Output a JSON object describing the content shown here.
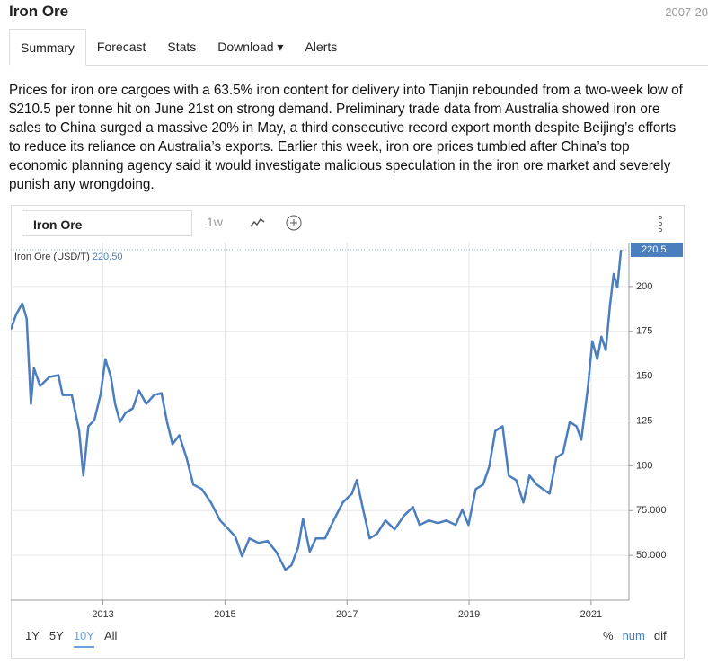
{
  "header": {
    "title": "Iron Ore",
    "date_range": "2007-20"
  },
  "tabs": [
    "Summary",
    "Forecast",
    "Stats",
    "Download",
    "Alerts"
  ],
  "summary": "Prices for iron ore cargoes with a 63.5% iron content for delivery into Tianjin rebounded from a two-week low of $210.5 per tonne hit on June 21st on strong demand. Preliminary trade data from Australia showed iron ore sales to China surged a massive 20% in May, a third consecutive record export month despite Beijing’s efforts to reduce its reliance on Australia’s exports. Earlier this week, iron ore prices tumbled after China’s top economic planning agency said it would investigate malicious speculation in the iron ore market and severely punish any wrongdoing.",
  "toolbar": {
    "search": "Iron Ore",
    "interval": "1w"
  },
  "ranges": [
    "1Y",
    "5Y",
    "10Y",
    "All"
  ],
  "modes": [
    "%",
    "num",
    "dif"
  ],
  "chart_data": {
    "type": "line",
    "series": [
      {
        "name": "Iron Ore (USD/T)",
        "color": "#4a7ebf",
        "x": [
          2011.49,
          2011.58,
          2011.68,
          2011.75,
          2011.82,
          2011.87,
          2011.97,
          2012.12,
          2012.27,
          2012.34,
          2012.49,
          2012.61,
          2012.68,
          2012.76,
          2012.86,
          2012.96,
          2013.04,
          2013.13,
          2013.2,
          2013.28,
          2013.37,
          2013.49,
          2013.59,
          2013.71,
          2013.84,
          2013.96,
          2014.05,
          2014.14,
          2014.25,
          2014.37,
          2014.48,
          2014.62,
          2014.77,
          2014.92,
          2015.06,
          2015.17,
          2015.28,
          2015.4,
          2015.55,
          2015.7,
          2015.84,
          2015.99,
          2016.09,
          2016.2,
          2016.28,
          2016.39,
          2016.49,
          2016.64,
          2016.78,
          2016.93,
          2017.08,
          2017.16,
          2017.27,
          2017.37,
          2017.49,
          2017.63,
          2017.78,
          2017.93,
          2018.08,
          2018.19,
          2018.34,
          2018.49,
          2018.63,
          2018.78,
          2018.89,
          2018.99,
          2019.11,
          2019.23,
          2019.33,
          2019.43,
          2019.55,
          2019.65,
          2019.77,
          2019.89,
          2019.99,
          2020.11,
          2020.21,
          2020.32,
          2020.43,
          2020.54,
          2020.65,
          2020.76,
          2020.84,
          2020.95,
          2021.02,
          2021.1,
          2021.17,
          2021.24,
          2021.31,
          2021.37,
          2021.43,
          2021.49
        ],
        "values": [
          176,
          184.5,
          190.5,
          182,
          134.5,
          154.5,
          144.5,
          149.5,
          150.5,
          139.5,
          139.5,
          119.5,
          94.5,
          122,
          125.5,
          139.5,
          159.5,
          149.5,
          134.5,
          124.5,
          129.5,
          132,
          142,
          134.5,
          139.5,
          140.5,
          124.5,
          112,
          117,
          104.5,
          89.5,
          87,
          79.5,
          69.5,
          64.5,
          60.5,
          49.5,
          59.5,
          57,
          58,
          52,
          42,
          44.5,
          54.5,
          70.5,
          52,
          59.5,
          59.5,
          69.5,
          79.5,
          84.5,
          92,
          74.5,
          59.5,
          62,
          69.5,
          64.5,
          72,
          77,
          67,
          69.5,
          68,
          69.5,
          67,
          75.5,
          67,
          87,
          89.5,
          99.5,
          119.5,
          122,
          94.5,
          92,
          79.5,
          94.5,
          89.5,
          87,
          84.5,
          104.5,
          107,
          124.5,
          122,
          114.5,
          144.5,
          169.5,
          159.5,
          172,
          164.5,
          189.5,
          207,
          199.5,
          220.5
        ]
      }
    ],
    "last_value": 220.5,
    "last_value_label": "220.50",
    "xlim": [
      2011.49,
      2021.62
    ],
    "xticks": [
      2013,
      2015,
      2017,
      2019,
      2021
    ],
    "ylim": [
      25,
      224.5
    ],
    "yticks": [
      {
        "value": 50,
        "label": "50.000"
      },
      {
        "value": 75,
        "label": "75.000"
      },
      100,
      125,
      150,
      175,
      200
    ],
    "grid": true
  }
}
